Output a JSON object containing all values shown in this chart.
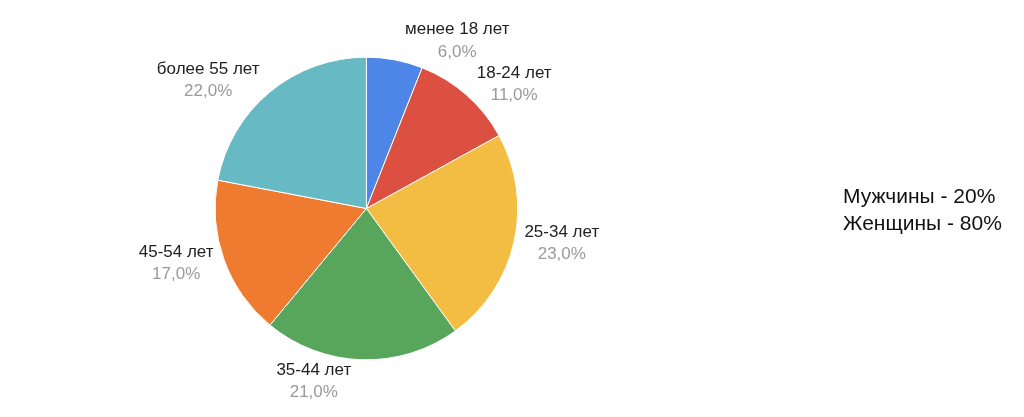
{
  "chart_data": {
    "type": "pie",
    "categories": [
      "менее 18 лет",
      "18-24 лет",
      "25-34 лет",
      "35-44 лет",
      "45-54 лет",
      "более 55 лет"
    ],
    "values": [
      6,
      11,
      23,
      21,
      17,
      22
    ],
    "value_labels": [
      "6,0%",
      "11,0%",
      "23,0%",
      "21,0%",
      "17,0%",
      "22,0%"
    ],
    "colors": [
      "#4e86e8",
      "#db5040",
      "#f2bd42",
      "#58a65c",
      "#ee7b30",
      "#67b9c3"
    ],
    "legend": false,
    "annotations": [
      "Мужчины - 20%\nЖенщины - 80%"
    ]
  }
}
